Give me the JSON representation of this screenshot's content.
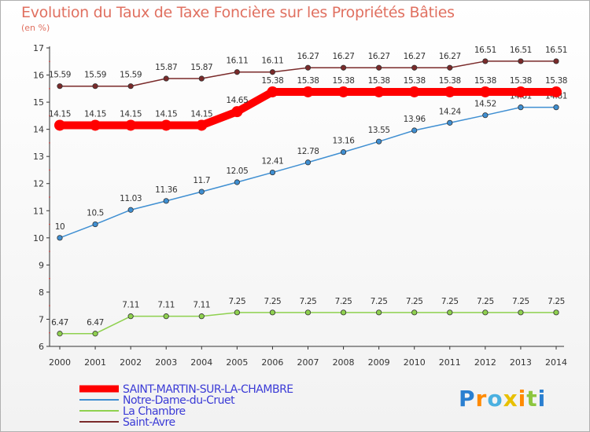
{
  "page": {
    "title": "Evolution du Taux de Taxe Foncière sur les Propriétés Bâties",
    "unit": "(en %)",
    "brand": "Proxiti"
  },
  "chart_data": {
    "type": "line",
    "title": "Evolution du Taux de Taxe Foncière sur les Propriétés Bâties",
    "ylabel": "(en %)",
    "xlabel": "",
    "ylim": [
      6,
      17
    ],
    "yticks": [
      6,
      7,
      8,
      9,
      10,
      11,
      12,
      13,
      14,
      15,
      16,
      17
    ],
    "x": [
      "2000",
      "2001",
      "2002",
      "2003",
      "2004",
      "2005",
      "2006",
      "2007",
      "2008",
      "2009",
      "2010",
      "2011",
      "2012",
      "2013",
      "2014"
    ],
    "series": [
      {
        "name": "SAINT-MARTIN-SUR-LA-CHAMBRE",
        "color": "#ff0000",
        "emphasis": true,
        "values": [
          14.15,
          14.15,
          14.15,
          14.15,
          14.15,
          14.65,
          15.38,
          15.38,
          15.38,
          15.38,
          15.38,
          15.38,
          15.38,
          15.38,
          15.38
        ],
        "labels": [
          "14.15",
          "14.15",
          "14.15",
          "14.15",
          "14.15",
          "14.65",
          "15.38",
          "15.38",
          "15.38",
          "15.38",
          "15.38",
          "15.38",
          "15.38",
          "15.38",
          "15.38"
        ]
      },
      {
        "name": "Notre-Dame-du-Cruet",
        "color": "#3f8fd2",
        "values": [
          10,
          10.5,
          11.03,
          11.36,
          11.7,
          12.05,
          12.41,
          12.78,
          13.16,
          13.55,
          13.96,
          14.24,
          14.52,
          14.81,
          14.81
        ],
        "labels": [
          "10",
          "10.5",
          "11.03",
          "11.36",
          "11.7",
          "12.05",
          "12.41",
          "12.78",
          "13.16",
          "13.55",
          "13.96",
          "14.24",
          "14.52",
          "14.81",
          "14.81"
        ]
      },
      {
        "name": "La Chambre",
        "color": "#8fd14f",
        "values": [
          6.47,
          6.47,
          7.11,
          7.11,
          7.11,
          7.25,
          7.25,
          7.25,
          7.25,
          7.25,
          7.25,
          7.25,
          7.25,
          7.25,
          7.25
        ],
        "labels": [
          "6.47",
          "6.47",
          "7.11",
          "7.11",
          "7.11",
          "7.25",
          "7.25",
          "7.25",
          "7.25",
          "7.25",
          "7.25",
          "7.25",
          "7.25",
          "7.25",
          "7.25"
        ]
      },
      {
        "name": "Saint-Avre",
        "color": "#7a2a2a",
        "values": [
          15.59,
          15.59,
          15.59,
          15.87,
          15.87,
          16.11,
          16.11,
          16.27,
          16.27,
          16.27,
          16.27,
          16.27,
          16.51,
          16.51,
          16.51
        ],
        "labels": [
          "15.59",
          "15.59",
          "15.59",
          "15.87",
          "15.87",
          "16.11",
          "16.11",
          "16.27",
          "16.27",
          "16.27",
          "16.27",
          "16.27",
          "16.51",
          "16.51",
          "16.51"
        ]
      }
    ],
    "legend": {
      "position": "bottom-left",
      "label_color": "#3b3bd6"
    }
  }
}
